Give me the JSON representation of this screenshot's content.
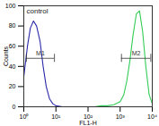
{
  "chart_data": {
    "type": "line",
    "log": "x",
    "x_label": "FL1-H",
    "y_label": "Counts",
    "x": [
      1,
      1.3,
      1.6,
      2,
      2.5,
      3.2,
      4,
      5,
      6.3,
      8,
      10,
      16,
      25,
      40,
      63,
      100,
      160,
      250,
      400,
      630,
      1000,
      1300,
      1600,
      2000,
      2500,
      3200,
      4000,
      5000,
      6300,
      8000,
      10000
    ],
    "series": [
      {
        "name": "control",
        "color": "#2a2aa8",
        "values": [
          30,
          60,
          78,
          85,
          80,
          65,
          40,
          20,
          8,
          3,
          1,
          0,
          0,
          0,
          0,
          0,
          0,
          0,
          0,
          0,
          0,
          0,
          0,
          0,
          0,
          0,
          0,
          0,
          0,
          0,
          0
        ]
      },
      {
        "color": "#33cc55",
        "values": [
          0,
          0,
          0,
          0,
          0,
          0,
          0,
          0,
          0,
          0,
          0,
          0,
          0,
          0,
          0,
          0,
          0,
          1,
          1,
          2,
          5,
          12,
          25,
          45,
          70,
          92,
          95,
          75,
          40,
          12,
          3
        ]
      }
    ],
    "xlim": [
      1,
      10000
    ],
    "xticks": [
      {
        "value": 1,
        "label": "10⁰"
      },
      {
        "value": 10,
        "label": "10¹"
      },
      {
        "value": 100,
        "label": "10²"
      },
      {
        "value": 1000,
        "label": "10³"
      },
      {
        "value": 10000,
        "label": "10⁴"
      }
    ],
    "ylim": [
      0,
      100
    ],
    "yticks": [
      0,
      20,
      40,
      60,
      80,
      100
    ],
    "annotations": [
      {
        "text": "M1",
        "x1": 1.2,
        "x2": 9,
        "y": 48
      },
      {
        "text": "M2",
        "x1": 1100,
        "x2": 9000,
        "y": 48
      }
    ]
  }
}
